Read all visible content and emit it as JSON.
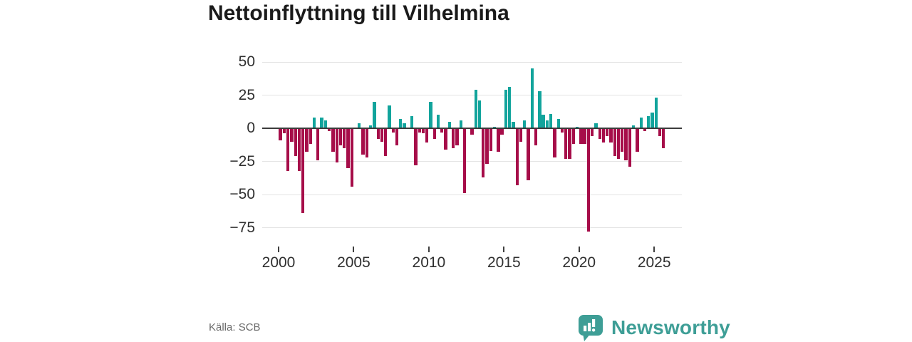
{
  "title": "Nettoinflyttning till Vilhelmina",
  "source": "Källa: SCB",
  "logo": {
    "text": "Newsworthy"
  },
  "colors": {
    "positive": "#12a49c",
    "negative": "#a60d49",
    "axis": "#3b3b3b",
    "grid": "#e4e4e4",
    "tick_text": "#2f2f2f",
    "source_text": "#6a6a6a",
    "logo": "#3e9e96",
    "title": "#1a1a1a"
  },
  "chart_data": {
    "type": "bar",
    "title": "Nettoinflyttning till Vilhelmina",
    "xlabel": "",
    "ylabel": "",
    "grid": true,
    "legend": "none",
    "ylim": [
      -85,
      55
    ],
    "yticks": [
      {
        "v": 50,
        "label": "50"
      },
      {
        "v": 25,
        "label": "25"
      },
      {
        "v": 0,
        "label": "0"
      },
      {
        "v": -25,
        "label": "−25"
      },
      {
        "v": -50,
        "label": "−50"
      },
      {
        "v": -75,
        "label": "−75"
      }
    ],
    "xticks": [
      2000,
      2005,
      2010,
      2015,
      2020,
      2025
    ],
    "series_note": "quarterly net migration, positive bars teal, negative bars maroon",
    "x": [
      "2000 Q1",
      "2000 Q2",
      "2000 Q3",
      "2000 Q4",
      "2001 Q1",
      "2001 Q2",
      "2001 Q3",
      "2001 Q4",
      "2002 Q1",
      "2002 Q2",
      "2002 Q3",
      "2002 Q4",
      "2003 Q1",
      "2003 Q2",
      "2003 Q3",
      "2003 Q4",
      "2004 Q1",
      "2004 Q2",
      "2004 Q3",
      "2004 Q4",
      "2005 Q1",
      "2005 Q2",
      "2005 Q3",
      "2005 Q4",
      "2006 Q1",
      "2006 Q2",
      "2006 Q3",
      "2006 Q4",
      "2007 Q1",
      "2007 Q2",
      "2007 Q3",
      "2007 Q4",
      "2008 Q1",
      "2008 Q2",
      "2008 Q3",
      "2008 Q4",
      "2009 Q1",
      "2009 Q2",
      "2009 Q3",
      "2009 Q4",
      "2010 Q1",
      "2010 Q2",
      "2010 Q3",
      "2010 Q4",
      "2011 Q1",
      "2011 Q2",
      "2011 Q3",
      "2011 Q4",
      "2012 Q1",
      "2012 Q2",
      "2012 Q3",
      "2012 Q4",
      "2013 Q1",
      "2013 Q2",
      "2013 Q3",
      "2013 Q4",
      "2014 Q1",
      "2014 Q2",
      "2014 Q3",
      "2014 Q4",
      "2015 Q1",
      "2015 Q2",
      "2015 Q3",
      "2015 Q4",
      "2016 Q1",
      "2016 Q2",
      "2016 Q3",
      "2016 Q4",
      "2017 Q1",
      "2017 Q2",
      "2017 Q3",
      "2017 Q4",
      "2018 Q1",
      "2018 Q2",
      "2018 Q3",
      "2018 Q4",
      "2019 Q1",
      "2019 Q2",
      "2019 Q3",
      "2019 Q4",
      "2020 Q1",
      "2020 Q2",
      "2020 Q3",
      "2020 Q4",
      "2021 Q1",
      "2021 Q2",
      "2021 Q3",
      "2021 Q4",
      "2022 Q1",
      "2022 Q2",
      "2022 Q3",
      "2022 Q4",
      "2023 Q1",
      "2023 Q2",
      "2023 Q3",
      "2023 Q4",
      "2024 Q1",
      "2024 Q2",
      "2024 Q3",
      "2024 Q4",
      "2025 Q1",
      "2025 Q2",
      "2025 Q3"
    ],
    "values": [
      -9,
      -4,
      -32,
      -10,
      -21,
      -32,
      -64,
      -18,
      -12,
      8,
      -24,
      8,
      6,
      -2,
      -18,
      -26,
      -13,
      -15,
      -30,
      -44,
      0,
      4,
      -20,
      -22,
      2,
      20,
      -8,
      -10,
      -21,
      17,
      -3,
      -13,
      7,
      4,
      0,
      9,
      -28,
      -3,
      -4,
      -11,
      20,
      -8,
      10,
      -3,
      -16,
      5,
      -15,
      -13,
      6,
      -49,
      0,
      -5,
      29,
      21,
      -37,
      -27,
      -17,
      1,
      -18,
      -5,
      29,
      31,
      5,
      -43,
      -10,
      6,
      -39,
      45,
      -13,
      28,
      10,
      6,
      11,
      -22,
      7,
      -3,
      -23,
      -23,
      -12,
      1,
      -12,
      -12,
      -78,
      -6,
      4,
      -8,
      -11,
      -6,
      -11,
      -21,
      -23,
      -18,
      -24,
      -29,
      2,
      -18,
      8,
      -2,
      9,
      12,
      23,
      -6,
      -15
    ]
  }
}
